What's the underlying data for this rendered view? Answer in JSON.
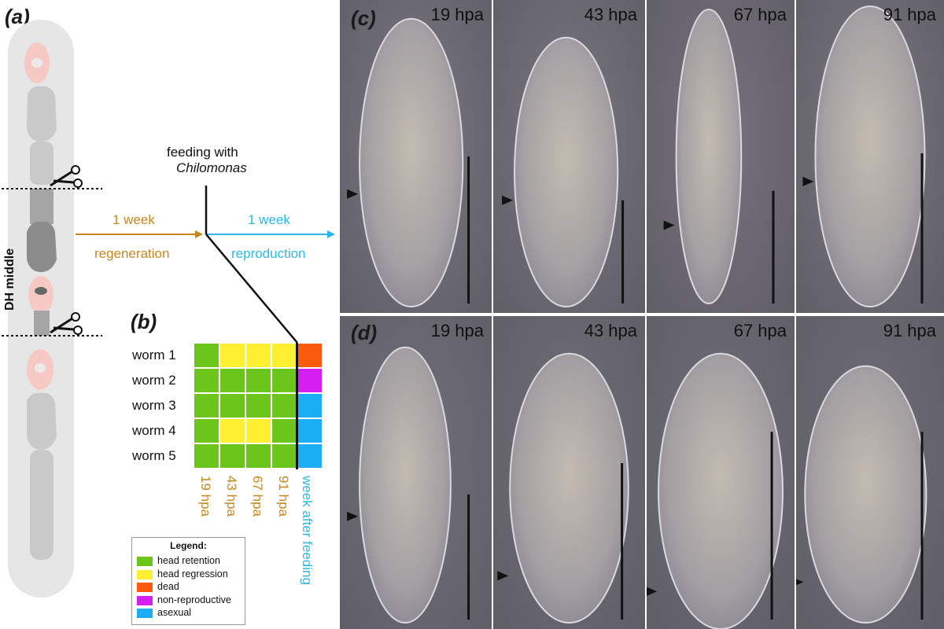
{
  "panel_a": {
    "label": "(a)",
    "side_label": "DH middle",
    "arrow1_top": "1 week",
    "arrow1_bottom": "regeneration",
    "feeding_line1": "feeding with",
    "feeding_line2": "Chilomonas",
    "arrow2_top": "1 week",
    "arrow2_bottom": "reproduction"
  },
  "panel_b": {
    "label": "(b)",
    "rows": [
      {
        "name": "worm 1",
        "states": [
          "retention",
          "regression",
          "regression",
          "regression"
        ],
        "outcome": "dead"
      },
      {
        "name": "worm 2",
        "states": [
          "retention",
          "retention",
          "retention",
          "retention"
        ],
        "outcome": "non-reproductive"
      },
      {
        "name": "worm 3",
        "states": [
          "retention",
          "retention",
          "retention",
          "retention"
        ],
        "outcome": "asexual"
      },
      {
        "name": "worm 4",
        "states": [
          "retention",
          "regression",
          "regression",
          "retention"
        ],
        "outcome": "asexual"
      },
      {
        "name": "worm 5",
        "states": [
          "retention",
          "retention",
          "retention",
          "retention"
        ],
        "outcome": "asexual"
      }
    ],
    "columns": [
      "19 hpa",
      "43 hpa",
      "67 hpa",
      "91 hpa"
    ],
    "last_column": "week after feeding",
    "legend": {
      "title": "Legend:",
      "items": [
        {
          "label": "head retention",
          "color": "#6cc51b"
        },
        {
          "label": "head regression",
          "color": "#fdf031"
        },
        {
          "label": "dead",
          "color": "#fc5a0d"
        },
        {
          "label": "non-reproductive",
          "color": "#d41ff0"
        },
        {
          "label": "asexual",
          "color": "#1caef4"
        }
      ]
    },
    "colors": {
      "retention": "#6cc51b",
      "regression": "#fdf031",
      "dead": "#fc5a0d",
      "non-reproductive": "#d41ff0",
      "asexual": "#1caef4"
    }
  },
  "panel_c": {
    "label": "(c)",
    "times": [
      "19 hpa",
      "43 hpa",
      "67 hpa",
      "91 hpa"
    ]
  },
  "panel_d": {
    "label": "(d)",
    "times": [
      "19 hpa",
      "43 hpa",
      "67 hpa",
      "91 hpa"
    ]
  }
}
